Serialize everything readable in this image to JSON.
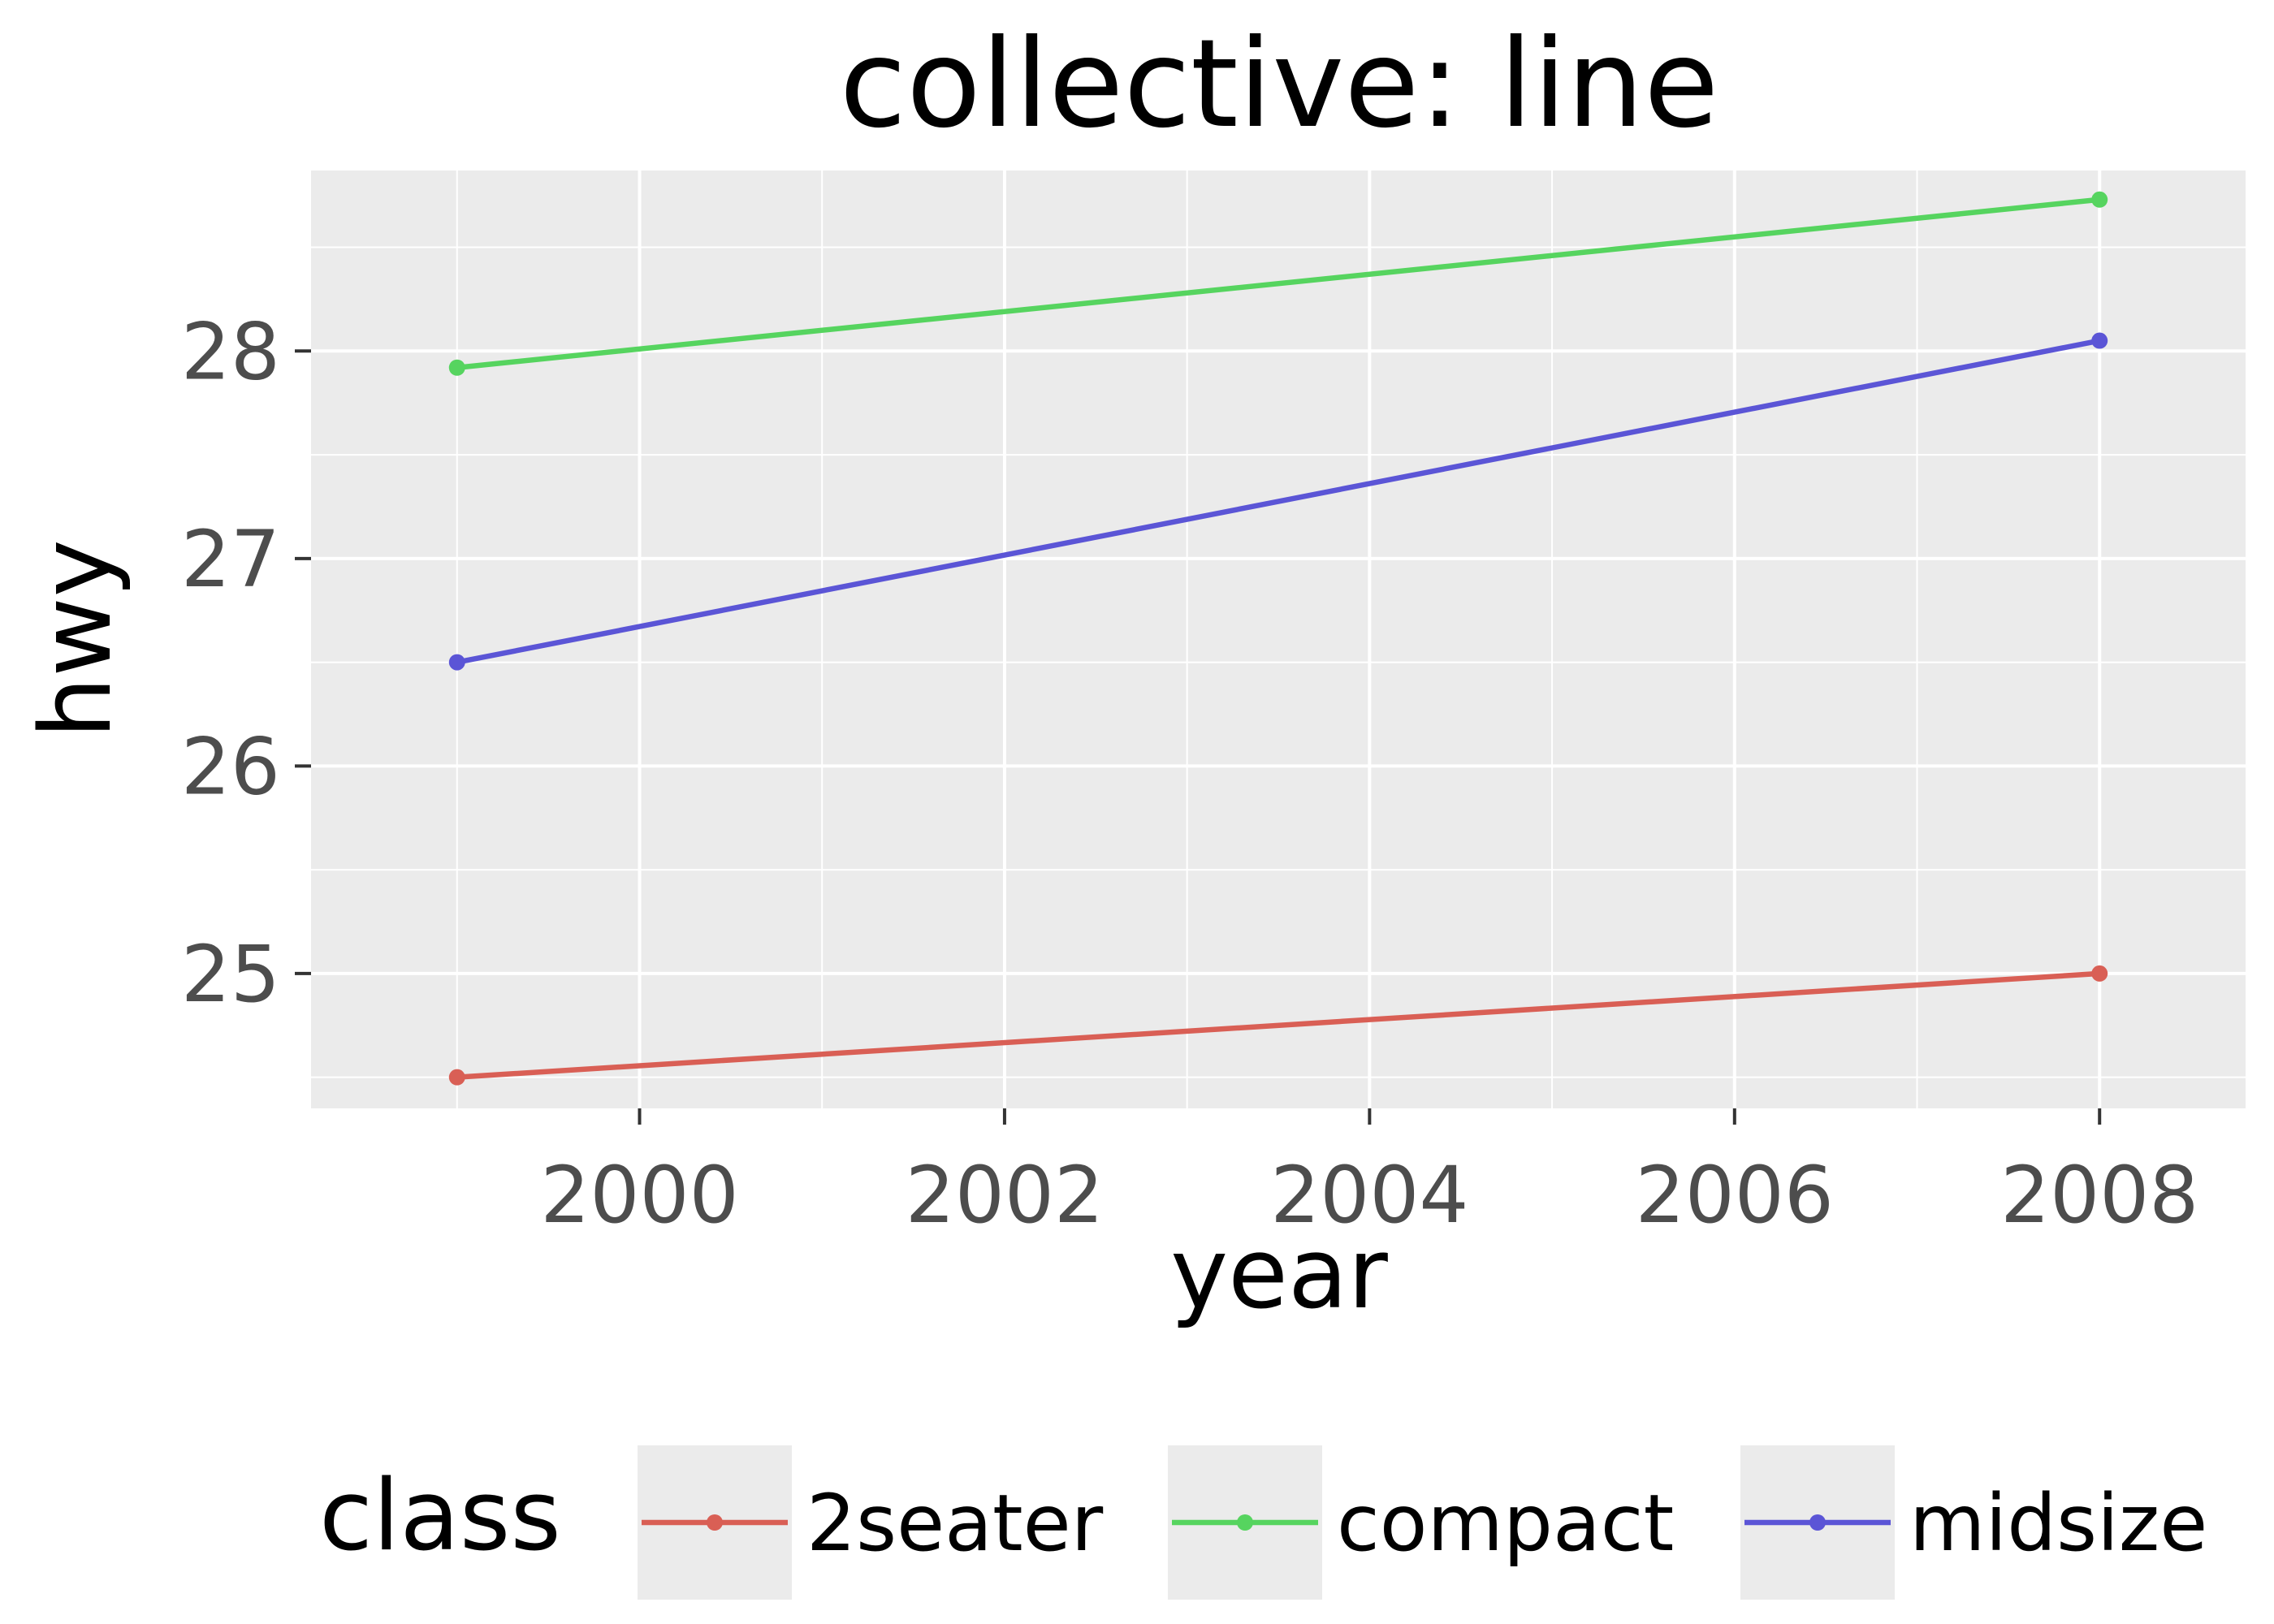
{
  "chart_data": {
    "type": "line",
    "title": "collective: line",
    "xlabel": "year",
    "ylabel": "hwy",
    "xlim": [
      1998.2,
      2008.8
    ],
    "ylim": [
      24.35,
      28.87
    ],
    "x_ticks": [
      2000,
      2002,
      2004,
      2006,
      2008
    ],
    "y_ticks": [
      25,
      26,
      27,
      28
    ],
    "grid": true,
    "legend": {
      "title": "class",
      "position": "bottom"
    },
    "series": [
      {
        "name": "2seater",
        "color": "#d95f55",
        "x": [
          1999,
          2008
        ],
        "values": [
          24.5,
          25.0
        ]
      },
      {
        "name": "compact",
        "color": "#56d45f",
        "x": [
          1999,
          2008
        ],
        "values": [
          27.92,
          28.73
        ]
      },
      {
        "name": "midsize",
        "color": "#5b55d6",
        "x": [
          1999,
          2008
        ],
        "values": [
          26.5,
          28.05
        ]
      }
    ]
  }
}
